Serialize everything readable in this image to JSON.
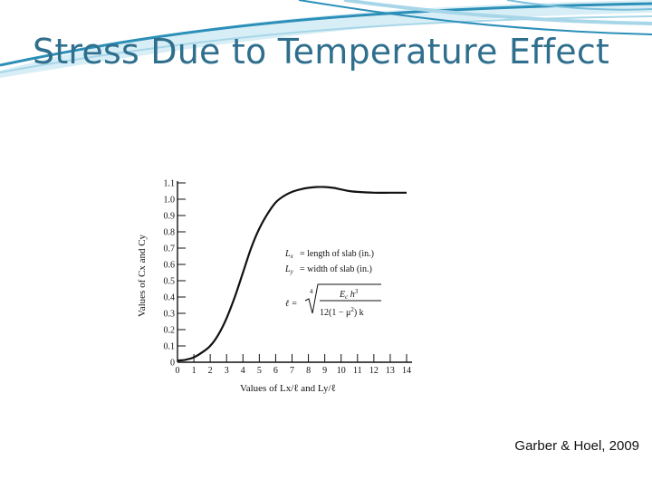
{
  "slide": {
    "title": "Stress Due to Temperature Effect",
    "caption": "Garber & Hoel, 2009"
  },
  "colors": {
    "title": "#2f6f8d",
    "swoosh_dark": "#2b8fb8",
    "swoosh_light": "#a7d6e8",
    "ink": "#111111"
  },
  "chart_data": {
    "type": "line",
    "xlabel": "Values of Lx/ℓ and Ly/ℓ",
    "ylabel": "Values of Cx and Cy",
    "xlim": [
      0,
      14
    ],
    "ylim": [
      0,
      1.1
    ],
    "x_ticks": [
      "0",
      "1",
      "2",
      "3",
      "4",
      "5",
      "6",
      "7",
      "8",
      "9",
      "10",
      "11",
      "12",
      "13",
      "14"
    ],
    "y_ticks": [
      "0",
      "0.1",
      "0.2",
      "0.3",
      "0.4",
      "0.5",
      "0.6",
      "0.7",
      "0.8",
      "0.9",
      "1.0",
      "1.1"
    ],
    "series": [
      {
        "x": [
          0,
          0.5,
          1,
          1.5,
          2,
          2.5,
          3,
          3.5,
          4,
          4.5,
          5,
          5.5,
          6,
          6.5,
          7,
          7.5,
          8,
          8.5,
          9,
          9.5,
          10,
          10.5,
          11,
          12,
          13,
          14
        ],
        "y": [
          0.01,
          0.015,
          0.03,
          0.06,
          0.1,
          0.17,
          0.27,
          0.4,
          0.55,
          0.7,
          0.82,
          0.91,
          0.98,
          1.02,
          1.045,
          1.06,
          1.07,
          1.075,
          1.075,
          1.07,
          1.06,
          1.05,
          1.045,
          1.04,
          1.04,
          1.04
        ]
      }
    ],
    "annotations": {
      "lx_def": "= length of slab (in.)",
      "ly_def": "= width of slab (in.)",
      "formula_lhs": "ℓ =",
      "formula_root_index": "4",
      "formula_num": "E",
      "formula_num_sub": "c",
      "formula_num_h": "h",
      "formula_num_pow": "3",
      "formula_den": "12(1 − μ",
      "formula_den_pow": "2",
      "formula_den_tail": ") k"
    }
  }
}
